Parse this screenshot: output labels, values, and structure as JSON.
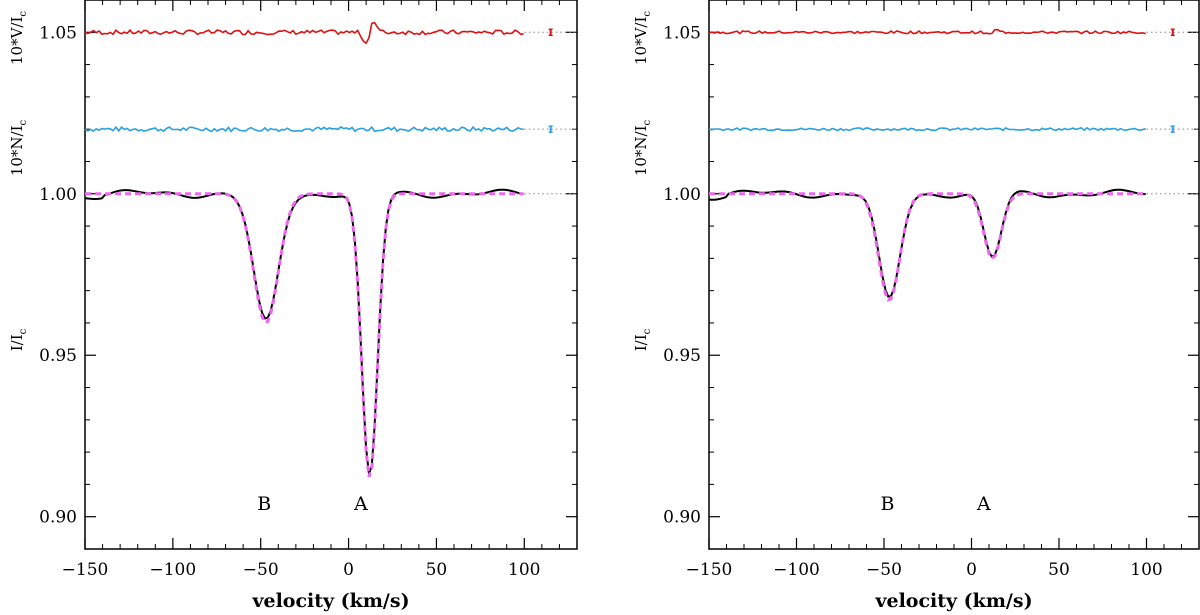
{
  "chart_data": [
    {
      "type": "line",
      "panel": "left",
      "xlabel": "velocity (km/s)",
      "ylabels": [
        "I/I",
        "10*N/I",
        "10*V/I"
      ],
      "ylabel_subscript": "c",
      "xlim": [
        -150,
        130
      ],
      "ylim": [
        0.89,
        1.06
      ],
      "xticks": [
        -150,
        -100,
        -50,
        0,
        50,
        100
      ],
      "xtick_labels": [
        "−150",
        "−100",
        "−50",
        "0",
        "50",
        "100"
      ],
      "yticks": [
        0.9,
        0.95,
        1.0,
        1.05
      ],
      "ytick_labels": [
        "0.90",
        "0.95",
        "1.00",
        "1.05"
      ],
      "components": [
        {
          "label": "B",
          "velocity": -47,
          "depth": 0.04,
          "sigma": 7
        },
        {
          "label": "A",
          "velocity": 12,
          "depth": 0.088,
          "sigma": 4.5
        }
      ],
      "v_offset": 1.05,
      "n_offset": 1.02,
      "v_signature_amplitude": 0.004,
      "v_signature_center": 12,
      "baseline_velocity_range": [
        -150,
        100
      ],
      "series": [
        {
          "name": "Stokes I (observed)",
          "color": "#000000",
          "style": "solid"
        },
        {
          "name": "Model fit",
          "color": "#ee66ee",
          "style": "dashed"
        },
        {
          "name": "Null N",
          "color": "#2aa0e0",
          "style": "solid"
        },
        {
          "name": "Stokes V",
          "color": "#dd1111",
          "style": "solid"
        }
      ]
    },
    {
      "type": "line",
      "panel": "right",
      "xlabel": "velocity (km/s)",
      "ylabels": [
        "I/I",
        "10*N/I",
        "10*V/I"
      ],
      "ylabel_subscript": "c",
      "xlim": [
        -150,
        130
      ],
      "ylim": [
        0.89,
        1.06
      ],
      "xticks": [
        -150,
        -100,
        -50,
        0,
        50,
        100
      ],
      "xtick_labels": [
        "−150",
        "−100",
        "−50",
        "0",
        "50",
        "100"
      ],
      "yticks": [
        0.9,
        0.95,
        1.0,
        1.05
      ],
      "ytick_labels": [
        "0.90",
        "0.95",
        "1.00",
        "1.05"
      ],
      "components": [
        {
          "label": "B",
          "velocity": -47,
          "depth": 0.033,
          "sigma": 6
        },
        {
          "label": "A",
          "velocity": 12,
          "depth": 0.02,
          "sigma": 5
        }
      ],
      "v_offset": 1.05,
      "n_offset": 1.02,
      "v_signature_amplitude": 0.0008,
      "v_signature_center": 12,
      "baseline_velocity_range": [
        -150,
        100
      ],
      "series": [
        {
          "name": "Stokes I (observed)",
          "color": "#000000",
          "style": "solid"
        },
        {
          "name": "Model fit",
          "color": "#ee66ee",
          "style": "dashed"
        },
        {
          "name": "Null N",
          "color": "#2aa0e0",
          "style": "solid"
        },
        {
          "name": "Stokes V",
          "color": "#dd1111",
          "style": "solid"
        }
      ]
    }
  ]
}
